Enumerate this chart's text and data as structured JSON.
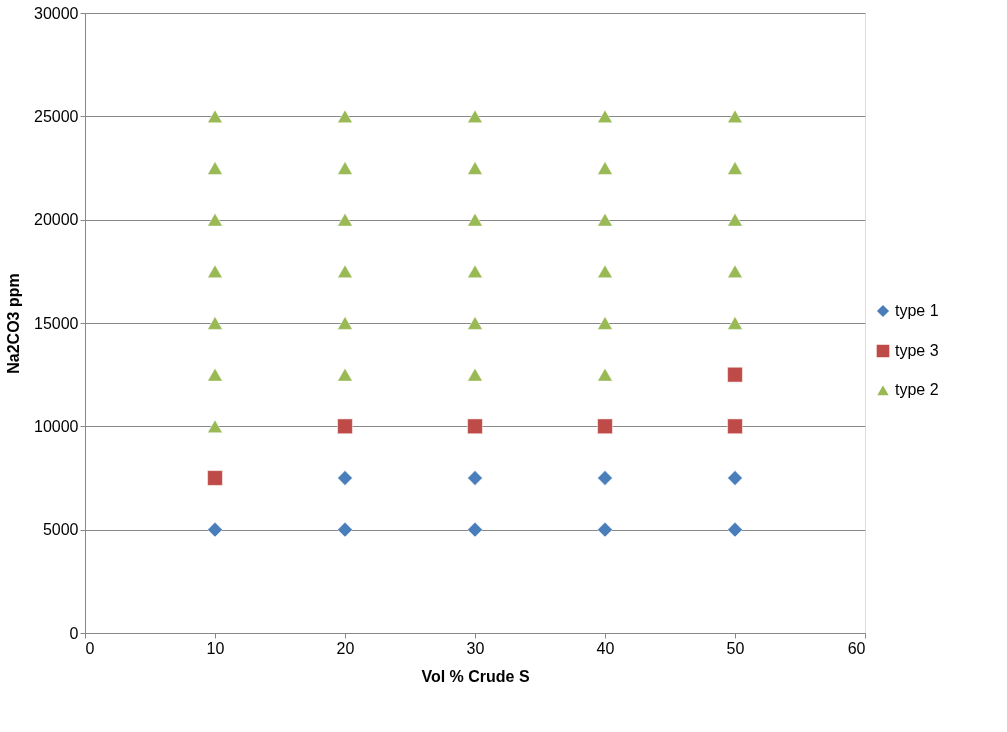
{
  "chart_data": {
    "type": "scatter",
    "xlabel": "Vol % Crude S",
    "ylabel": "Na2CO3 ppm",
    "xlim": [
      0,
      60
    ],
    "xticks": [
      0,
      10,
      20,
      30,
      40,
      50,
      60
    ],
    "ylim": [
      0,
      30000
    ],
    "yticks": [
      0,
      5000,
      10000,
      15000,
      20000,
      25000,
      30000
    ],
    "grid": "y",
    "legend": "right",
    "series": [
      {
        "name": "type 1",
        "color": "#4a7ebb",
        "marker": "diamond",
        "x": [
          10,
          20,
          30,
          40,
          50,
          20,
          30,
          40,
          50
        ],
        "values": [
          5000,
          5000,
          5000,
          5000,
          5000,
          7500,
          7500,
          7500,
          7500
        ]
      },
      {
        "name": "type 3",
        "color": "#be4b48",
        "marker": "square",
        "x": [
          10,
          20,
          30,
          40,
          50,
          50
        ],
        "values": [
          7500,
          10000,
          10000,
          10000,
          10000,
          12500
        ]
      },
      {
        "name": "type 2",
        "color": "#98b954",
        "marker": "triangle",
        "x": [
          10,
          10,
          10,
          10,
          10,
          10,
          10,
          20,
          20,
          20,
          20,
          20,
          20,
          30,
          30,
          30,
          30,
          30,
          30,
          40,
          40,
          40,
          40,
          40,
          40,
          50,
          50,
          50,
          50,
          50
        ],
        "values": [
          10000,
          12500,
          15000,
          17500,
          20000,
          22500,
          25000,
          12500,
          15000,
          17500,
          20000,
          22500,
          25000,
          12500,
          15000,
          17500,
          20000,
          22500,
          25000,
          12500,
          15000,
          17500,
          20000,
          22500,
          25000,
          15000,
          17500,
          20000,
          22500,
          25000
        ]
      }
    ]
  }
}
